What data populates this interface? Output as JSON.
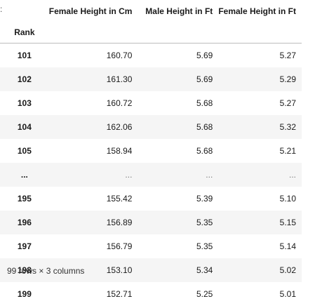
{
  "prompt_marker": ":",
  "table": {
    "columns": [
      "Female Height in Cm",
      "Male Height in Ft",
      "Female Height in Ft"
    ],
    "index_name": "Rank",
    "rows": [
      {
        "rank": "101",
        "cells": [
          "160.70",
          "5.69",
          "5.27"
        ]
      },
      {
        "rank": "102",
        "cells": [
          "161.30",
          "5.69",
          "5.29"
        ]
      },
      {
        "rank": "103",
        "cells": [
          "160.72",
          "5.68",
          "5.27"
        ]
      },
      {
        "rank": "104",
        "cells": [
          "162.06",
          "5.68",
          "5.32"
        ]
      },
      {
        "rank": "105",
        "cells": [
          "158.94",
          "5.68",
          "5.21"
        ]
      },
      {
        "rank": "...",
        "cells": [
          "...",
          "...",
          "..."
        ]
      },
      {
        "rank": "195",
        "cells": [
          "155.42",
          "5.39",
          "5.10"
        ]
      },
      {
        "rank": "196",
        "cells": [
          "156.89",
          "5.35",
          "5.15"
        ]
      },
      {
        "rank": "197",
        "cells": [
          "156.79",
          "5.35",
          "5.14"
        ]
      },
      {
        "rank": "198",
        "cells": [
          "153.10",
          "5.34",
          "5.02"
        ]
      },
      {
        "rank": "199",
        "cells": [
          "152.71",
          "5.25",
          "5.01"
        ]
      }
    ]
  },
  "footer": "99 rows × 3 columns"
}
